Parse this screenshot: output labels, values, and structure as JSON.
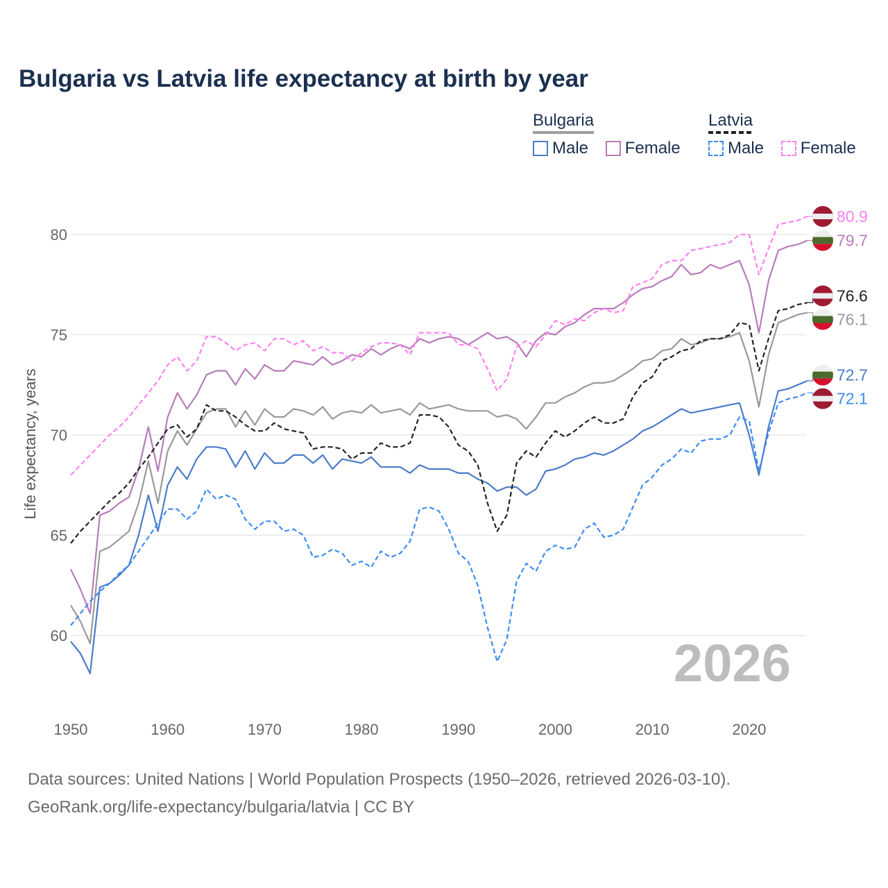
{
  "title": "Bulgaria vs Latvia life expectancy at birth by year",
  "legend": {
    "groups": [
      {
        "name": "Bulgaria",
        "items": [
          "Male",
          "Female"
        ]
      },
      {
        "name": "Latvia",
        "items": [
          "Male",
          "Female"
        ]
      }
    ]
  },
  "year_watermark": "2026",
  "footer": {
    "line1": "Data sources: United Nations | World Population Prospects (1950–2026, retrieved 2026-03-10).",
    "line2": "GeoRank.org/life-expectancy/bulgaria/latvia | CC BY"
  },
  "chart_data": {
    "type": "line",
    "title": "Bulgaria vs Latvia life expectancy at birth by year",
    "xlabel": "",
    "ylabel": "Life expectancy, years",
    "xlim": [
      1950,
      2026
    ],
    "ylim": [
      56.5,
      83
    ],
    "x_ticks": [
      1950,
      1960,
      1970,
      1980,
      1990,
      2000,
      2010,
      2020
    ],
    "y_ticks": [
      60,
      65,
      70,
      75,
      80
    ],
    "grid": true,
    "legend_position": "top-right",
    "x_start": 1950,
    "series": [
      {
        "name": "Bulgaria Female",
        "country": "Bulgaria",
        "sex": "Female",
        "color": "#b77cba",
        "dashed": false,
        "end_label": "79.7",
        "flag": "bulgaria",
        "values": [
          63.3,
          62.3,
          61.1,
          66.0,
          66.2,
          66.6,
          66.9,
          68.3,
          70.4,
          68.2,
          70.9,
          72.1,
          71.3,
          72.0,
          73.0,
          73.2,
          73.2,
          72.5,
          73.3,
          72.8,
          73.5,
          73.2,
          73.2,
          73.7,
          73.6,
          73.5,
          73.9,
          73.5,
          73.7,
          74.0,
          73.9,
          74.3,
          74.0,
          74.3,
          74.5,
          74.3,
          74.8,
          74.6,
          74.8,
          74.9,
          74.8,
          74.5,
          74.8,
          75.1,
          74.8,
          74.9,
          74.6,
          73.9,
          74.7,
          75.1,
          75.0,
          75.4,
          75.6,
          76.0,
          76.3,
          76.3,
          76.3,
          76.6,
          77.0,
          77.3,
          77.4,
          77.7,
          77.9,
          78.5,
          78.0,
          78.1,
          78.5,
          78.3,
          78.5,
          78.7,
          77.5,
          75.1,
          77.7,
          79.2,
          79.4,
          79.5,
          79.7
        ]
      },
      {
        "name": "Bulgaria",
        "country": "Bulgaria",
        "sex": "Total",
        "color": "#999999",
        "dashed": false,
        "end_label": "76.1",
        "flag": "bulgaria",
        "values": [
          61.5,
          60.7,
          59.6,
          64.2,
          64.4,
          64.8,
          65.2,
          66.6,
          68.7,
          66.6,
          69.2,
          70.2,
          69.5,
          70.3,
          71.1,
          71.3,
          71.3,
          70.4,
          71.2,
          70.5,
          71.3,
          70.9,
          70.9,
          71.3,
          71.2,
          71.0,
          71.4,
          70.8,
          71.1,
          71.2,
          71.1,
          71.5,
          71.1,
          71.2,
          71.3,
          71.0,
          71.6,
          71.3,
          71.4,
          71.5,
          71.3,
          71.2,
          71.2,
          71.2,
          70.9,
          71.0,
          70.8,
          70.3,
          70.9,
          71.6,
          71.6,
          71.9,
          72.1,
          72.4,
          72.6,
          72.6,
          72.7,
          73.0,
          73.3,
          73.7,
          73.8,
          74.2,
          74.3,
          74.8,
          74.5,
          74.6,
          74.8,
          74.8,
          74.9,
          75.1,
          73.7,
          71.4,
          74.0,
          75.6,
          75.8,
          76.0,
          76.1
        ]
      },
      {
        "name": "Bulgaria Male",
        "country": "Bulgaria",
        "sex": "Male",
        "color": "#4a7cc9",
        "dashed": false,
        "end_label": "72.7",
        "flag": "bulgaria",
        "values": [
          59.7,
          59.1,
          58.1,
          62.4,
          62.6,
          63.0,
          63.5,
          65.0,
          67.0,
          65.2,
          67.5,
          68.4,
          67.8,
          68.8,
          69.4,
          69.4,
          69.3,
          68.4,
          69.2,
          68.3,
          69.1,
          68.6,
          68.6,
          69.0,
          69.0,
          68.6,
          69.0,
          68.3,
          68.8,
          68.7,
          68.6,
          68.9,
          68.4,
          68.4,
          68.4,
          68.1,
          68.5,
          68.3,
          68.3,
          68.3,
          68.1,
          68.1,
          67.8,
          67.6,
          67.2,
          67.4,
          67.4,
          67.0,
          67.3,
          68.2,
          68.3,
          68.5,
          68.8,
          68.9,
          69.1,
          69.0,
          69.2,
          69.5,
          69.8,
          70.2,
          70.4,
          70.7,
          71.0,
          71.3,
          71.1,
          71.2,
          71.3,
          71.4,
          71.5,
          71.6,
          70.0,
          68.0,
          70.4,
          72.2,
          72.3,
          72.5,
          72.7
        ]
      },
      {
        "name": "Latvia Female",
        "country": "Latvia",
        "sex": "Female",
        "color": "#ff80f2",
        "dashed": true,
        "end_label": "80.9",
        "flag": "latvia",
        "values": [
          68.0,
          68.5,
          69.0,
          69.5,
          70.0,
          70.4,
          70.9,
          71.5,
          72.1,
          72.7,
          73.5,
          73.9,
          73.2,
          73.7,
          74.9,
          74.9,
          74.6,
          74.2,
          74.5,
          74.6,
          74.2,
          74.8,
          74.8,
          74.5,
          74.7,
          74.2,
          74.4,
          74.1,
          74.1,
          73.7,
          74.1,
          74.4,
          74.6,
          74.6,
          74.5,
          74.0,
          75.1,
          75.1,
          75.1,
          75.1,
          74.5,
          74.5,
          74.3,
          73.3,
          72.2,
          72.8,
          74.4,
          74.7,
          74.4,
          75.0,
          75.7,
          75.5,
          75.8,
          75.7,
          76.1,
          76.3,
          76.1,
          76.2,
          77.4,
          77.6,
          77.8,
          78.5,
          78.7,
          78.7,
          79.2,
          79.3,
          79.4,
          79.5,
          79.6,
          80.0,
          80.0,
          78.0,
          79.3,
          80.5,
          80.6,
          80.7,
          80.9
        ]
      },
      {
        "name": "Latvia",
        "country": "Latvia",
        "sex": "Total",
        "color": "#222222",
        "dashed": true,
        "end_label": "76.6",
        "flag": "latvia",
        "values": [
          64.6,
          65.2,
          65.7,
          66.2,
          66.7,
          67.1,
          67.6,
          68.3,
          68.9,
          69.6,
          70.3,
          70.5,
          69.9,
          70.3,
          71.5,
          71.2,
          71.2,
          70.9,
          70.5,
          70.2,
          70.2,
          70.6,
          70.3,
          70.2,
          70.1,
          69.3,
          69.4,
          69.4,
          69.3,
          68.8,
          69.1,
          69.1,
          69.6,
          69.4,
          69.4,
          69.6,
          71.0,
          71.0,
          70.9,
          70.4,
          69.5,
          69.2,
          68.5,
          66.6,
          65.2,
          66.0,
          68.6,
          69.2,
          68.9,
          69.6,
          70.2,
          69.9,
          70.2,
          70.6,
          70.9,
          70.6,
          70.6,
          70.8,
          71.9,
          72.6,
          72.9,
          73.7,
          73.9,
          74.2,
          74.3,
          74.7,
          74.8,
          74.8,
          75.0,
          75.6,
          75.5,
          73.2,
          74.8,
          76.2,
          76.3,
          76.5,
          76.6
        ]
      },
      {
        "name": "Latvia Male",
        "country": "Latvia",
        "sex": "Male",
        "color": "#3d8cf2",
        "dashed": true,
        "end_label": "72.1",
        "flag": "latvia",
        "values": [
          60.5,
          61.1,
          61.7,
          62.2,
          62.6,
          63.1,
          63.5,
          64.2,
          64.9,
          65.6,
          66.3,
          66.3,
          65.8,
          66.2,
          67.3,
          66.8,
          67.0,
          66.8,
          65.8,
          65.3,
          65.7,
          65.7,
          65.2,
          65.3,
          65.0,
          63.9,
          64.0,
          64.3,
          64.1,
          63.5,
          63.7,
          63.4,
          64.2,
          63.9,
          64.1,
          64.7,
          66.3,
          66.4,
          66.2,
          65.3,
          64.1,
          63.7,
          62.5,
          60.4,
          58.7,
          59.8,
          62.7,
          63.6,
          63.2,
          64.2,
          64.5,
          64.3,
          64.4,
          65.3,
          65.6,
          64.9,
          65.0,
          65.3,
          66.4,
          67.5,
          67.9,
          68.5,
          68.8,
          69.3,
          69.1,
          69.7,
          69.8,
          69.8,
          70.0,
          70.9,
          70.7,
          68.2,
          70.1,
          71.6,
          71.8,
          71.9,
          72.1
        ]
      }
    ]
  }
}
